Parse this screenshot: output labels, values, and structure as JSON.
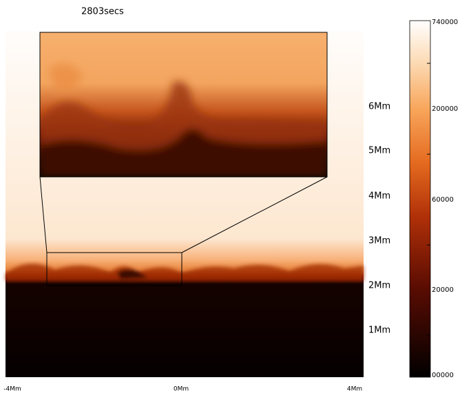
{
  "title": "2803secs",
  "y_labels": [
    "6Mm",
    "5Mm",
    "4Mm",
    "3Mm",
    "2Mm",
    "1Mm"
  ],
  "x_labels": [
    "-4Mm",
    "0Mm",
    "4Mm"
  ],
  "colorbar_labels": [
    "740000",
    "200000",
    "60000",
    "20000",
    "00000"
  ]
}
